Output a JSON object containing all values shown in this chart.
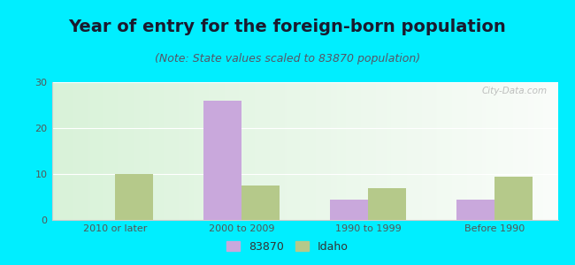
{
  "title": "Year of entry for the foreign-born population",
  "subtitle": "(Note: State values scaled to 83870 population)",
  "categories": [
    "2010 or later",
    "2000 to 2009",
    "1990 to 1999",
    "Before 1990"
  ],
  "series_83870": [
    0,
    26,
    4.5,
    4.5
  ],
  "series_idaho": [
    10,
    7.5,
    7,
    9.5
  ],
  "color_83870": "#c9a8dc",
  "color_idaho": "#b5c98a",
  "ylim": [
    0,
    30
  ],
  "yticks": [
    0,
    10,
    20,
    30
  ],
  "background_outer": "#00eeff",
  "legend_labels": [
    "83870",
    "Idaho"
  ],
  "watermark": "City-Data.com",
  "bar_width": 0.3,
  "title_fontsize": 14,
  "subtitle_fontsize": 9,
  "tick_fontsize": 8,
  "legend_fontsize": 9
}
